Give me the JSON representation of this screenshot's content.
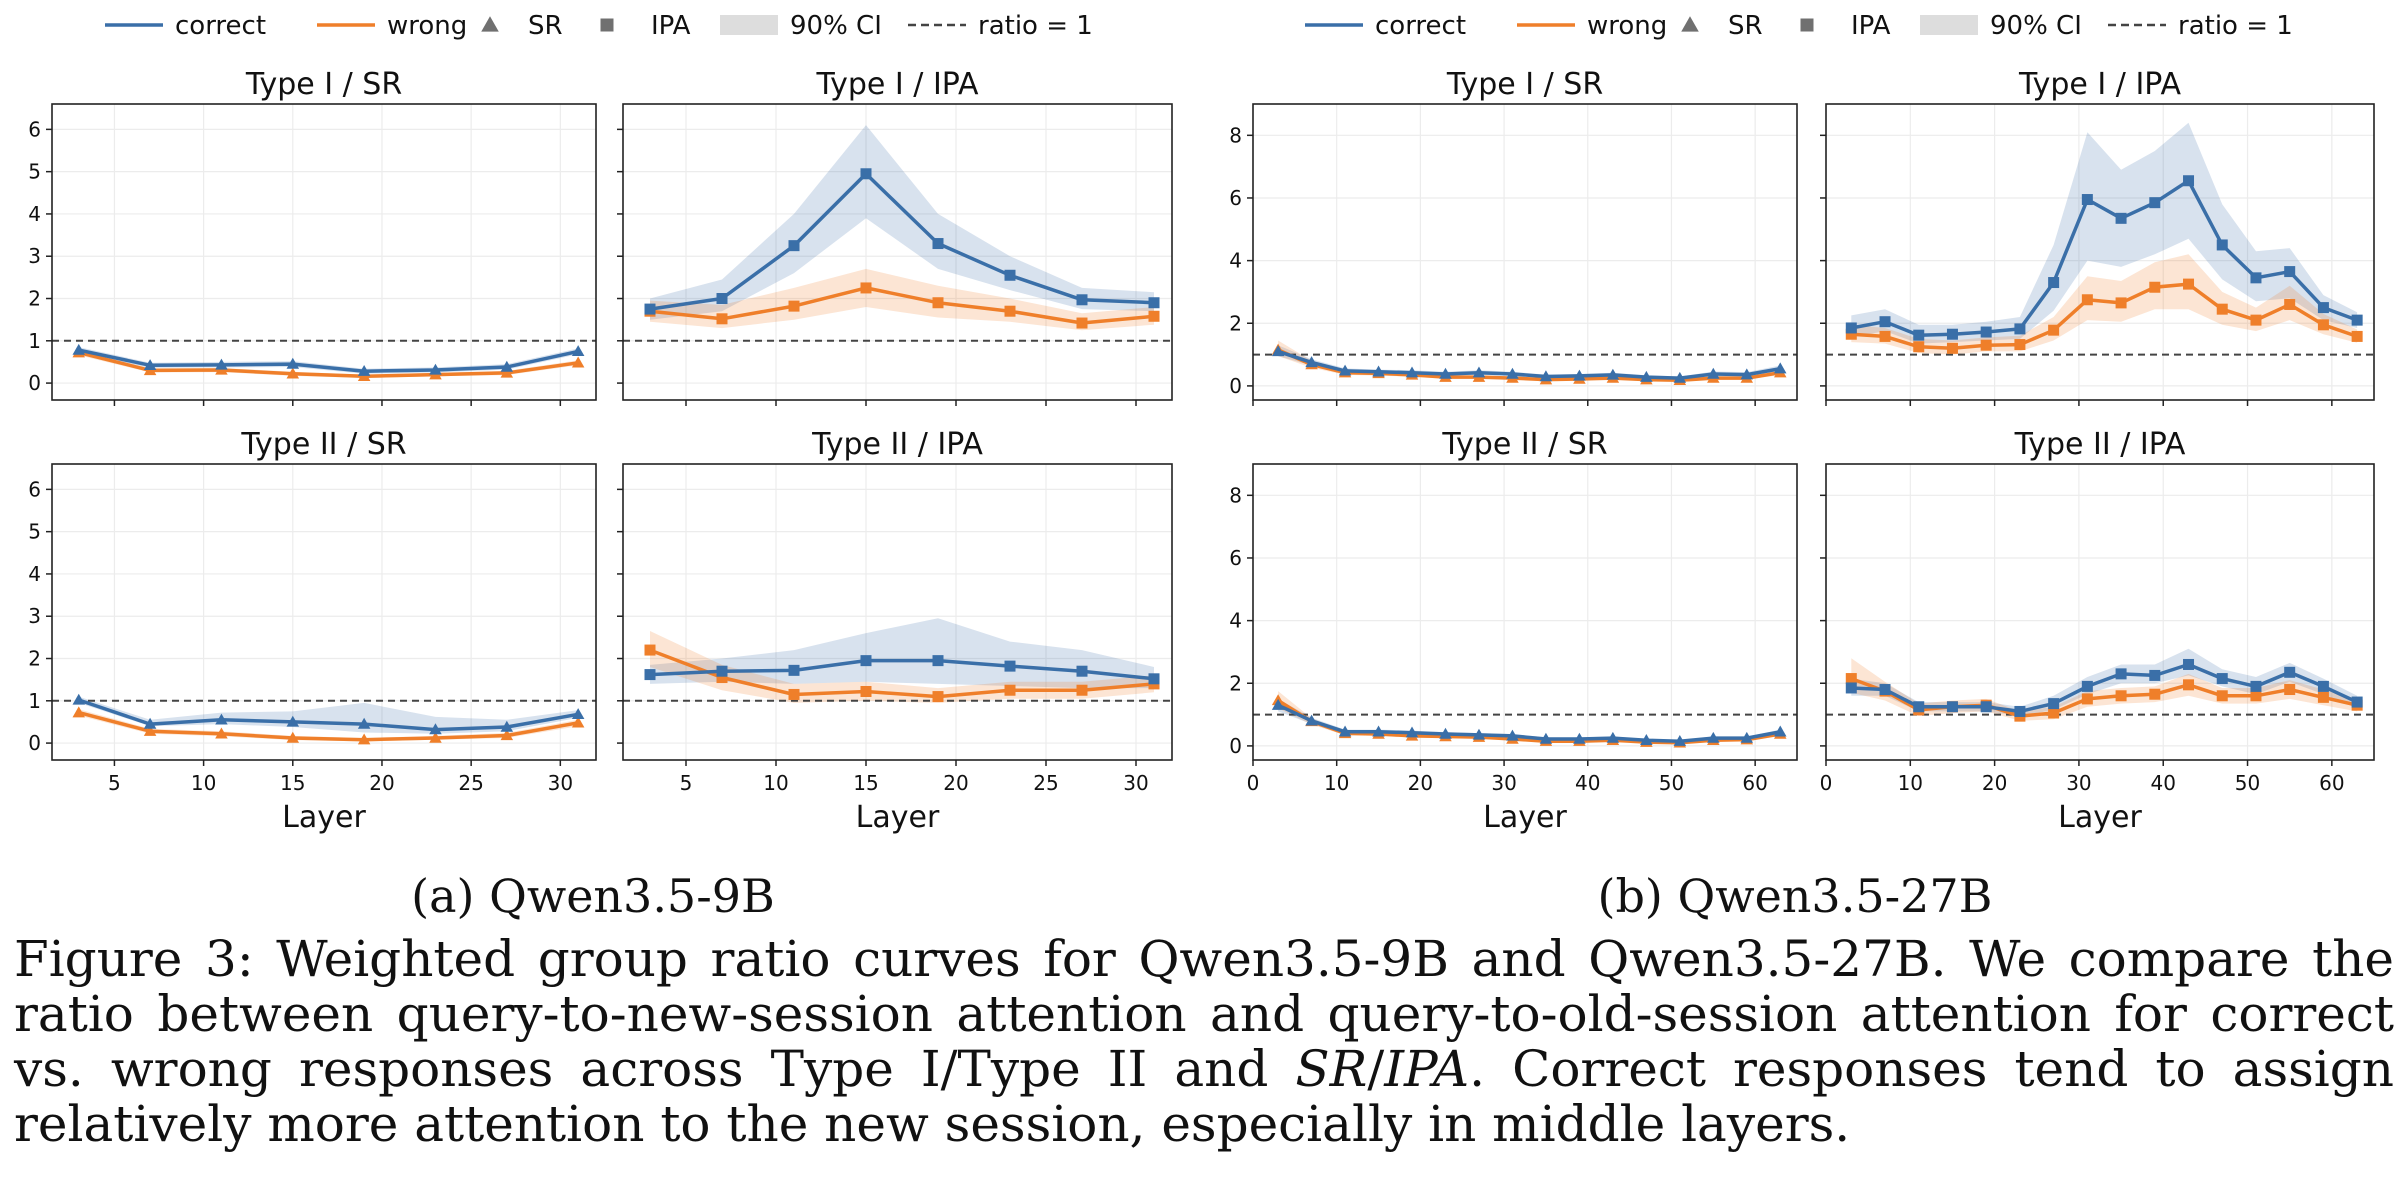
{
  "legend": {
    "items": [
      "correct",
      "wrong",
      "SR",
      "IPA",
      "90% CI",
      "ratio = 1"
    ],
    "colors": {
      "correct": "#3a6fa8",
      "wrong": "#ef7f2a",
      "marker": "#707070",
      "ci": "#dddddd",
      "ratio": "#444444"
    }
  },
  "groups": [
    {
      "label": "(a) Qwen3.5-9B"
    },
    {
      "label": "(b) Qwen3.5-27B"
    }
  ],
  "caption": {
    "prefix": "Figure 3: Weighted group ratio curves for Qwen3.5-9B and Qwen3.5-27B. We compare the ratio between query-to-new-session attention and query-to-old-session attention for correct vs. wrong responses across Type I/Type II and ",
    "sr": "SR",
    "slash": "/",
    "ipa": "IPA",
    "suffix": ". Correct responses tend to assign relatively more attention to the new session, especially in middle layers."
  },
  "chart_data": [
    {
      "type": "line",
      "title": "Type I / SR",
      "model": "Qwen3.5-9B",
      "marker": "triangle",
      "xlabel": "",
      "ylabel": "",
      "xlim": [
        1.5,
        32
      ],
      "ylim": [
        -0.4,
        6.6
      ],
      "xticks": [
        5,
        10,
        15,
        20,
        25,
        30
      ],
      "yticks": [
        0,
        1,
        2,
        3,
        4,
        5,
        6
      ],
      "x": [
        3,
        7,
        11,
        15,
        19,
        23,
        27,
        31
      ],
      "series": [
        {
          "name": "correct",
          "values": [
            0.78,
            0.42,
            0.43,
            0.45,
            0.28,
            0.31,
            0.38,
            0.75
          ],
          "ci_low": [
            0.72,
            0.36,
            0.37,
            0.38,
            0.22,
            0.25,
            0.32,
            0.68
          ],
          "ci_high": [
            0.85,
            0.48,
            0.5,
            0.52,
            0.34,
            0.37,
            0.45,
            0.82
          ]
        },
        {
          "name": "wrong",
          "values": [
            0.72,
            0.3,
            0.31,
            0.22,
            0.16,
            0.2,
            0.24,
            0.48
          ],
          "ci_low": [
            0.66,
            0.25,
            0.26,
            0.17,
            0.12,
            0.16,
            0.19,
            0.42
          ],
          "ci_high": [
            0.78,
            0.35,
            0.36,
            0.27,
            0.2,
            0.24,
            0.29,
            0.54
          ]
        }
      ],
      "reference_line": 1,
      "grid": true
    },
    {
      "type": "line",
      "title": "Type I / IPA",
      "model": "Qwen3.5-9B",
      "marker": "square",
      "xlabel": "",
      "ylabel": "",
      "xlim": [
        1.5,
        32
      ],
      "ylim": [
        -0.4,
        6.6
      ],
      "xticks": [
        5,
        10,
        15,
        20,
        25,
        30
      ],
      "yticks": [
        0,
        1,
        2,
        3,
        4,
        5,
        6
      ],
      "x": [
        3,
        7,
        11,
        15,
        19,
        23,
        27,
        31
      ],
      "series": [
        {
          "name": "correct",
          "values": [
            1.75,
            2.0,
            3.25,
            4.95,
            3.3,
            2.55,
            1.97,
            1.9
          ],
          "ci_low": [
            1.5,
            1.7,
            2.6,
            3.9,
            2.7,
            2.2,
            1.75,
            1.7
          ],
          "ci_high": [
            2.0,
            2.45,
            4.0,
            6.1,
            4.0,
            3.0,
            2.25,
            2.15
          ]
        },
        {
          "name": "wrong",
          "values": [
            1.7,
            1.52,
            1.82,
            2.25,
            1.9,
            1.7,
            1.42,
            1.58
          ],
          "ci_low": [
            1.45,
            1.3,
            1.5,
            1.8,
            1.55,
            1.45,
            1.25,
            1.38
          ],
          "ci_high": [
            1.95,
            1.85,
            2.25,
            2.7,
            2.3,
            2.0,
            1.65,
            1.8
          ]
        }
      ],
      "reference_line": 1,
      "grid": true
    },
    {
      "type": "line",
      "title": "Type II / SR",
      "model": "Qwen3.5-9B",
      "marker": "triangle",
      "xlabel": "Layer",
      "ylabel": "",
      "xlim": [
        1.5,
        32
      ],
      "ylim": [
        -0.4,
        6.6
      ],
      "xticks": [
        5,
        10,
        15,
        20,
        25,
        30
      ],
      "yticks": [
        0,
        1,
        2,
        3,
        4,
        5,
        6
      ],
      "x": [
        3,
        7,
        11,
        15,
        19,
        23,
        27,
        31
      ],
      "series": [
        {
          "name": "correct",
          "values": [
            1.02,
            0.45,
            0.55,
            0.5,
            0.45,
            0.32,
            0.38,
            0.68
          ],
          "ci_low": [
            0.95,
            0.4,
            0.45,
            0.38,
            0.25,
            0.22,
            0.28,
            0.6
          ],
          "ci_high": [
            1.1,
            0.55,
            0.72,
            0.75,
            0.95,
            0.62,
            0.55,
            0.78
          ]
        },
        {
          "name": "wrong",
          "values": [
            0.72,
            0.28,
            0.22,
            0.12,
            0.08,
            0.12,
            0.18,
            0.48
          ],
          "ci_low": [
            0.65,
            0.22,
            0.16,
            0.07,
            0.04,
            0.08,
            0.12,
            0.4
          ],
          "ci_high": [
            0.8,
            0.34,
            0.28,
            0.17,
            0.12,
            0.17,
            0.24,
            0.55
          ]
        }
      ],
      "reference_line": 1,
      "grid": true
    },
    {
      "type": "line",
      "title": "Type II / IPA",
      "model": "Qwen3.5-9B",
      "marker": "square",
      "xlabel": "Layer",
      "ylabel": "",
      "xlim": [
        1.5,
        32
      ],
      "ylim": [
        -0.4,
        6.6
      ],
      "xticks": [
        5,
        10,
        15,
        20,
        25,
        30
      ],
      "yticks": [
        0,
        1,
        2,
        3,
        4,
        5,
        6
      ],
      "x": [
        3,
        7,
        11,
        15,
        19,
        23,
        27,
        31
      ],
      "series": [
        {
          "name": "correct",
          "values": [
            1.62,
            1.7,
            1.72,
            1.95,
            1.95,
            1.82,
            1.7,
            1.52
          ],
          "ci_low": [
            1.4,
            1.45,
            1.4,
            1.45,
            1.4,
            1.35,
            1.3,
            1.3
          ],
          "ci_high": [
            1.85,
            2.0,
            2.2,
            2.6,
            2.95,
            2.4,
            2.2,
            1.8
          ]
        },
        {
          "name": "wrong",
          "values": [
            2.2,
            1.55,
            1.15,
            1.22,
            1.1,
            1.25,
            1.25,
            1.4
          ],
          "ci_low": [
            1.8,
            1.25,
            0.95,
            1.0,
            0.95,
            1.05,
            1.05,
            1.2
          ],
          "ci_high": [
            2.65,
            1.85,
            1.4,
            1.45,
            1.3,
            1.45,
            1.45,
            1.6
          ]
        }
      ],
      "reference_line": 1,
      "grid": true
    },
    {
      "type": "line",
      "title": "Type I / SR",
      "model": "Qwen3.5-27B",
      "marker": "triangle",
      "xlabel": "",
      "ylabel": "",
      "xlim": [
        0,
        65
      ],
      "ylim": [
        -0.45,
        9.0
      ],
      "xticks": [
        0,
        10,
        20,
        30,
        40,
        50,
        60
      ],
      "yticks": [
        0,
        2,
        4,
        6,
        8
      ],
      "x": [
        3,
        7,
        11,
        15,
        19,
        23,
        27,
        31,
        35,
        39,
        43,
        47,
        51,
        55,
        59,
        63
      ],
      "series": [
        {
          "name": "correct",
          "values": [
            1.1,
            0.75,
            0.48,
            0.45,
            0.42,
            0.38,
            0.42,
            0.38,
            0.3,
            0.32,
            0.35,
            0.28,
            0.25,
            0.38,
            0.36,
            0.55
          ],
          "ci_low": [
            0.95,
            0.65,
            0.4,
            0.38,
            0.35,
            0.32,
            0.35,
            0.32,
            0.25,
            0.26,
            0.29,
            0.22,
            0.2,
            0.3,
            0.29,
            0.45
          ],
          "ci_high": [
            1.3,
            0.85,
            0.56,
            0.52,
            0.5,
            0.45,
            0.5,
            0.45,
            0.36,
            0.38,
            0.42,
            0.34,
            0.3,
            0.46,
            0.44,
            0.65
          ]
        },
        {
          "name": "wrong",
          "values": [
            1.15,
            0.68,
            0.42,
            0.4,
            0.35,
            0.28,
            0.28,
            0.25,
            0.2,
            0.22,
            0.25,
            0.2,
            0.18,
            0.25,
            0.25,
            0.42
          ],
          "ci_low": [
            0.95,
            0.58,
            0.35,
            0.33,
            0.29,
            0.23,
            0.23,
            0.2,
            0.16,
            0.18,
            0.2,
            0.16,
            0.14,
            0.2,
            0.2,
            0.35
          ],
          "ci_high": [
            1.45,
            0.8,
            0.5,
            0.47,
            0.41,
            0.34,
            0.34,
            0.3,
            0.25,
            0.27,
            0.3,
            0.25,
            0.22,
            0.3,
            0.3,
            0.5
          ]
        }
      ],
      "reference_line": 1,
      "grid": true
    },
    {
      "type": "line",
      "title": "Type I / IPA",
      "model": "Qwen3.5-27B",
      "marker": "square",
      "xlabel": "",
      "ylabel": "",
      "xlim": [
        0,
        65
      ],
      "ylim": [
        -0.45,
        9.0
      ],
      "xticks": [
        0,
        10,
        20,
        30,
        40,
        50,
        60
      ],
      "yticks": [
        0,
        2,
        4,
        6,
        8
      ],
      "x": [
        3,
        7,
        11,
        15,
        19,
        23,
        27,
        31,
        35,
        39,
        43,
        47,
        51,
        55,
        59,
        63
      ],
      "series": [
        {
          "name": "correct",
          "values": [
            1.85,
            2.05,
            1.62,
            1.65,
            1.72,
            1.82,
            3.3,
            5.95,
            5.35,
            5.85,
            6.55,
            4.5,
            3.45,
            3.65,
            2.5,
            2.1
          ],
          "ci_low": [
            1.55,
            1.75,
            1.35,
            1.4,
            1.45,
            1.5,
            2.4,
            4.0,
            3.8,
            4.2,
            4.7,
            3.4,
            2.7,
            2.8,
            2.1,
            1.85
          ],
          "ci_high": [
            2.25,
            2.45,
            1.95,
            1.95,
            2.05,
            2.2,
            4.5,
            8.1,
            6.9,
            7.5,
            8.4,
            5.8,
            4.3,
            4.4,
            2.9,
            2.35
          ]
        },
        {
          "name": "wrong",
          "values": [
            1.65,
            1.58,
            1.25,
            1.2,
            1.3,
            1.32,
            1.78,
            2.75,
            2.65,
            3.15,
            3.25,
            2.45,
            2.1,
            2.6,
            1.95,
            1.58
          ],
          "ci_low": [
            1.4,
            1.35,
            1.05,
            1.0,
            1.1,
            1.1,
            1.45,
            2.1,
            2.05,
            2.45,
            2.45,
            1.95,
            1.75,
            2.1,
            1.65,
            1.38
          ],
          "ci_high": [
            1.95,
            1.85,
            1.5,
            1.45,
            1.55,
            1.6,
            2.2,
            3.5,
            3.35,
            3.95,
            4.2,
            3.0,
            2.5,
            3.2,
            2.3,
            1.8
          ]
        }
      ],
      "reference_line": 1,
      "grid": true
    },
    {
      "type": "line",
      "title": "Type II / SR",
      "model": "Qwen3.5-27B",
      "marker": "triangle",
      "xlabel": "Layer",
      "ylabel": "",
      "xlim": [
        0,
        65
      ],
      "ylim": [
        -0.45,
        9.0
      ],
      "xticks": [
        0,
        10,
        20,
        30,
        40,
        50,
        60
      ],
      "yticks": [
        0,
        2,
        4,
        6,
        8
      ],
      "x": [
        3,
        7,
        11,
        15,
        19,
        23,
        27,
        31,
        35,
        39,
        43,
        47,
        51,
        55,
        59,
        63
      ],
      "series": [
        {
          "name": "correct",
          "values": [
            1.3,
            0.8,
            0.45,
            0.45,
            0.42,
            0.38,
            0.35,
            0.32,
            0.22,
            0.22,
            0.25,
            0.18,
            0.15,
            0.25,
            0.25,
            0.45
          ],
          "ci_low": [
            1.1,
            0.7,
            0.38,
            0.38,
            0.35,
            0.32,
            0.29,
            0.26,
            0.17,
            0.17,
            0.2,
            0.14,
            0.11,
            0.2,
            0.2,
            0.38
          ],
          "ci_high": [
            1.5,
            0.9,
            0.52,
            0.52,
            0.49,
            0.44,
            0.41,
            0.38,
            0.27,
            0.27,
            0.3,
            0.22,
            0.19,
            0.3,
            0.3,
            0.52
          ]
        },
        {
          "name": "wrong",
          "values": [
            1.45,
            0.78,
            0.4,
            0.38,
            0.32,
            0.3,
            0.28,
            0.22,
            0.15,
            0.15,
            0.18,
            0.12,
            0.1,
            0.18,
            0.2,
            0.38
          ],
          "ci_low": [
            1.2,
            0.68,
            0.34,
            0.32,
            0.27,
            0.25,
            0.23,
            0.18,
            0.12,
            0.12,
            0.14,
            0.09,
            0.07,
            0.14,
            0.15,
            0.32
          ],
          "ci_high": [
            1.75,
            0.88,
            0.46,
            0.44,
            0.37,
            0.35,
            0.33,
            0.26,
            0.18,
            0.18,
            0.22,
            0.15,
            0.13,
            0.22,
            0.25,
            0.44
          ]
        }
      ],
      "reference_line": 1,
      "grid": true
    },
    {
      "type": "line",
      "title": "Type II / IPA",
      "model": "Qwen3.5-27B",
      "marker": "square",
      "xlabel": "Layer",
      "ylabel": "",
      "xlim": [
        0,
        65
      ],
      "ylim": [
        -0.45,
        9.0
      ],
      "xticks": [
        0,
        10,
        20,
        30,
        40,
        50,
        60
      ],
      "yticks": [
        0,
        2,
        4,
        6,
        8
      ],
      "x": [
        3,
        7,
        11,
        15,
        19,
        23,
        27,
        31,
        35,
        39,
        43,
        47,
        51,
        55,
        59,
        63
      ],
      "series": [
        {
          "name": "correct",
          "values": [
            1.85,
            1.8,
            1.25,
            1.25,
            1.25,
            1.1,
            1.35,
            1.9,
            2.3,
            2.25,
            2.6,
            2.15,
            1.9,
            2.35,
            1.9,
            1.4
          ],
          "ci_low": [
            1.6,
            1.6,
            1.1,
            1.1,
            1.1,
            0.95,
            1.15,
            1.65,
            2.0,
            2.0,
            2.25,
            1.9,
            1.65,
            2.05,
            1.65,
            1.2
          ],
          "ci_high": [
            2.15,
            2.0,
            1.4,
            1.4,
            1.4,
            1.25,
            1.6,
            2.2,
            2.6,
            2.6,
            3.1,
            2.45,
            2.2,
            2.65,
            2.15,
            1.6
          ]
        },
        {
          "name": "wrong",
          "values": [
            2.15,
            1.75,
            1.15,
            1.25,
            1.3,
            0.95,
            1.05,
            1.5,
            1.6,
            1.65,
            1.95,
            1.6,
            1.6,
            1.8,
            1.55,
            1.3
          ],
          "ci_low": [
            1.7,
            1.45,
            0.95,
            1.05,
            1.1,
            0.8,
            0.85,
            1.25,
            1.35,
            1.4,
            1.6,
            1.35,
            1.35,
            1.5,
            1.3,
            1.1
          ],
          "ci_high": [
            2.8,
            2.05,
            1.35,
            1.45,
            1.5,
            1.1,
            1.25,
            1.75,
            1.85,
            1.9,
            2.3,
            1.85,
            1.85,
            2.1,
            1.8,
            1.5
          ]
        }
      ],
      "reference_line": 1,
      "grid": true
    }
  ]
}
